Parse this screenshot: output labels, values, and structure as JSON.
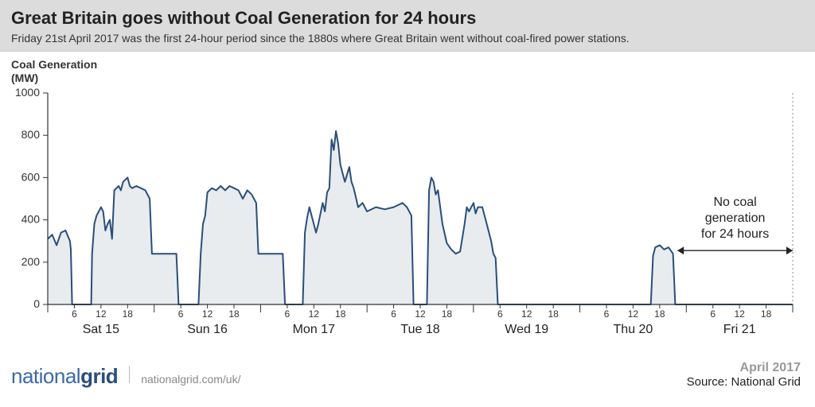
{
  "header": {
    "title": "Great Britain goes without Coal Generation for 24 hours",
    "subtitle": "Friday 21st April 2017 was the first 24-hour period since the 1880s where Great Britain went without coal-fired power stations."
  },
  "chart": {
    "type": "area",
    "ylabel_line1": "Coal Generation",
    "ylabel_line2": "(MW)",
    "ylim": [
      0,
      1000
    ],
    "ytick_step": 200,
    "yticks": [
      0,
      200,
      400,
      600,
      800,
      1000
    ],
    "x_range_hours": 168,
    "minor_tick_hours": [
      6,
      12,
      18
    ],
    "days": [
      "Sat 15",
      "Sun 16",
      "Mon 17",
      "Tue 18",
      "Wed 19",
      "Thu 20",
      "Fri 21"
    ],
    "line_color": "#2a4e7a",
    "fill_color": "#e8ecef",
    "axis_color": "#333333",
    "background_color": "#ffffff",
    "line_width": 2,
    "axis_label_fontsize": 14,
    "tick_fontsize": 12,
    "day_label_fontsize": 16,
    "annotation": {
      "text_line1": "No coal",
      "text_line2": "generation",
      "text_line3": "for 24 hours",
      "fontsize": 16,
      "start_hour": 142,
      "end_hour": 168
    },
    "series": [
      [
        0,
        310
      ],
      [
        1,
        330
      ],
      [
        2,
        280
      ],
      [
        3,
        340
      ],
      [
        4,
        350
      ],
      [
        5,
        300
      ],
      [
        5.2,
        260
      ],
      [
        5.5,
        0
      ],
      [
        6,
        0
      ],
      [
        7,
        0
      ],
      [
        8,
        0
      ],
      [
        9,
        0
      ],
      [
        9.8,
        0
      ],
      [
        10,
        240
      ],
      [
        10.5,
        380
      ],
      [
        11,
        420
      ],
      [
        12,
        460
      ],
      [
        12.5,
        440
      ],
      [
        13,
        350
      ],
      [
        13.5,
        380
      ],
      [
        14,
        400
      ],
      [
        14.5,
        310
      ],
      [
        15,
        540
      ],
      [
        16,
        560
      ],
      [
        16.5,
        540
      ],
      [
        17,
        580
      ],
      [
        18,
        600
      ],
      [
        18.5,
        560
      ],
      [
        19,
        550
      ],
      [
        20,
        560
      ],
      [
        21,
        550
      ],
      [
        22,
        540
      ],
      [
        23,
        500
      ],
      [
        23.5,
        240
      ],
      [
        24,
        240
      ],
      [
        27,
        240
      ],
      [
        29,
        240
      ],
      [
        29.5,
        0
      ],
      [
        30,
        0
      ],
      [
        32,
        0
      ],
      [
        33,
        0
      ],
      [
        34,
        0
      ],
      [
        34.5,
        240
      ],
      [
        35,
        380
      ],
      [
        35.5,
        420
      ],
      [
        36,
        530
      ],
      [
        37,
        550
      ],
      [
        38,
        540
      ],
      [
        39,
        560
      ],
      [
        40,
        540
      ],
      [
        41,
        560
      ],
      [
        42,
        550
      ],
      [
        43,
        540
      ],
      [
        44,
        500
      ],
      [
        45,
        540
      ],
      [
        46,
        520
      ],
      [
        47,
        480
      ],
      [
        47.5,
        240
      ],
      [
        48,
        240
      ],
      [
        51,
        240
      ],
      [
        53,
        240
      ],
      [
        53.5,
        0
      ],
      [
        54,
        0
      ],
      [
        56,
        0
      ],
      [
        57.5,
        0
      ],
      [
        58,
        340
      ],
      [
        58.5,
        410
      ],
      [
        59,
        460
      ],
      [
        60,
        380
      ],
      [
        60.5,
        340
      ],
      [
        61,
        380
      ],
      [
        62,
        480
      ],
      [
        62.5,
        440
      ],
      [
        63,
        530
      ],
      [
        63.5,
        550
      ],
      [
        64,
        780
      ],
      [
        64.5,
        730
      ],
      [
        65,
        820
      ],
      [
        65.5,
        760
      ],
      [
        66,
        660
      ],
      [
        67,
        580
      ],
      [
        68,
        650
      ],
      [
        68.5,
        580
      ],
      [
        69,
        550
      ],
      [
        70,
        460
      ],
      [
        71,
        480
      ],
      [
        72,
        440
      ],
      [
        74,
        460
      ],
      [
        76,
        450
      ],
      [
        78,
        460
      ],
      [
        80,
        480
      ],
      [
        81,
        460
      ],
      [
        82,
        420
      ],
      [
        82.5,
        0
      ],
      [
        83,
        0
      ],
      [
        85,
        0
      ],
      [
        85.5,
        0
      ],
      [
        86,
        540
      ],
      [
        86.5,
        600
      ],
      [
        87,
        580
      ],
      [
        87.5,
        520
      ],
      [
        88,
        540
      ],
      [
        89,
        380
      ],
      [
        90,
        290
      ],
      [
        91,
        260
      ],
      [
        92,
        240
      ],
      [
        93,
        250
      ],
      [
        94,
        380
      ],
      [
        94.5,
        460
      ],
      [
        95,
        440
      ],
      [
        96,
        480
      ],
      [
        96.5,
        430
      ],
      [
        97,
        460
      ],
      [
        98,
        460
      ],
      [
        99,
        380
      ],
      [
        100,
        300
      ],
      [
        100.5,
        240
      ],
      [
        101,
        220
      ],
      [
        101.5,
        0
      ],
      [
        102,
        0
      ],
      [
        110,
        0
      ],
      [
        120,
        0
      ],
      [
        130,
        0
      ],
      [
        136,
        0
      ],
      [
        136.5,
        230
      ],
      [
        137,
        270
      ],
      [
        138,
        280
      ],
      [
        139,
        260
      ],
      [
        140,
        270
      ],
      [
        141,
        240
      ],
      [
        141.5,
        0
      ],
      [
        142,
        0
      ],
      [
        150,
        0
      ],
      [
        160,
        0
      ],
      [
        168,
        0
      ]
    ]
  },
  "footer": {
    "brand_prefix": "national",
    "brand_suffix": "grid",
    "url": "nationalgrid.com/uk/",
    "month": "April 2017",
    "source": "Source: National Grid"
  }
}
